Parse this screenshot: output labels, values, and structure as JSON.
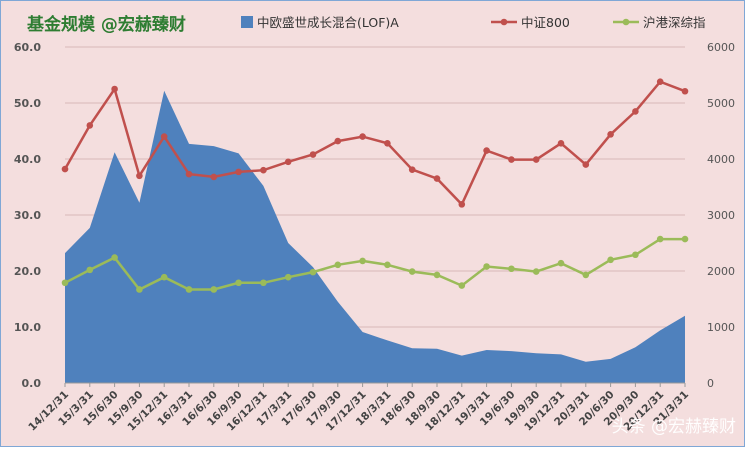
{
  "chart_data": {
    "type": "line",
    "title": "基金规模 @宏赫臻财",
    "watermark": "头条 @宏赫臻财",
    "x": [
      "14/12/31",
      "15/3/31",
      "15/6/30",
      "15/9/30",
      "15/12/31",
      "16/3/31",
      "16/6/30",
      "16/9/30",
      "16/12/31",
      "17/3/31",
      "17/6/30",
      "17/9/30",
      "17/12/31",
      "18/3/31",
      "18/6/30",
      "18/9/30",
      "18/12/31",
      "19/3/31",
      "19/6/30",
      "19/9/30",
      "19/12/31",
      "20/3/31",
      "20/6/30",
      "20/9/30",
      "20/12/31",
      "21/3/31"
    ],
    "left_axis": {
      "ticks": [
        "0.0",
        "10.0",
        "20.0",
        "30.0",
        "40.0",
        "50.0",
        "60.0"
      ],
      "range": [
        0,
        60
      ]
    },
    "right_axis": {
      "ticks": [
        "0",
        "1000",
        "2000",
        "3000",
        "4000",
        "5000",
        "6000"
      ],
      "range": [
        0,
        6000
      ]
    },
    "series": [
      {
        "name": "中欧盛世成长混合(LOF)A",
        "type": "area",
        "axis": "left",
        "color": "#4f81bd",
        "values": [
          23.2,
          27.7,
          41.2,
          32.2,
          52.2,
          42.7,
          42.3,
          41.0,
          35.2,
          25.0,
          20.7,
          14.5,
          9.1,
          7.6,
          6.2,
          6.1,
          4.9,
          5.9,
          5.7,
          5.3,
          5.1,
          3.8,
          4.3,
          6.4,
          9.4,
          12.0
        ]
      },
      {
        "name": "中证800",
        "type": "line",
        "axis": "right",
        "color": "#c0504d",
        "values": [
          3820,
          4600,
          5250,
          3700,
          4400,
          3730,
          3680,
          3770,
          3800,
          3950,
          4080,
          4320,
          4400,
          4280,
          3810,
          3650,
          3190,
          4150,
          3990,
          3990,
          4280,
          3900,
          4440,
          4850,
          5380,
          5210
        ]
      },
      {
        "name": "沪港深综指",
        "type": "line",
        "axis": "right",
        "color": "#9bbb59",
        "values": [
          1790,
          2020,
          2240,
          1670,
          1890,
          1670,
          1670,
          1790,
          1790,
          1890,
          1980,
          2110,
          2180,
          2110,
          1990,
          1930,
          1740,
          2080,
          2040,
          1990,
          2140,
          1930,
          2200,
          2290,
          2570,
          2570
        ]
      }
    ],
    "legend_position": "top",
    "grid": true
  }
}
